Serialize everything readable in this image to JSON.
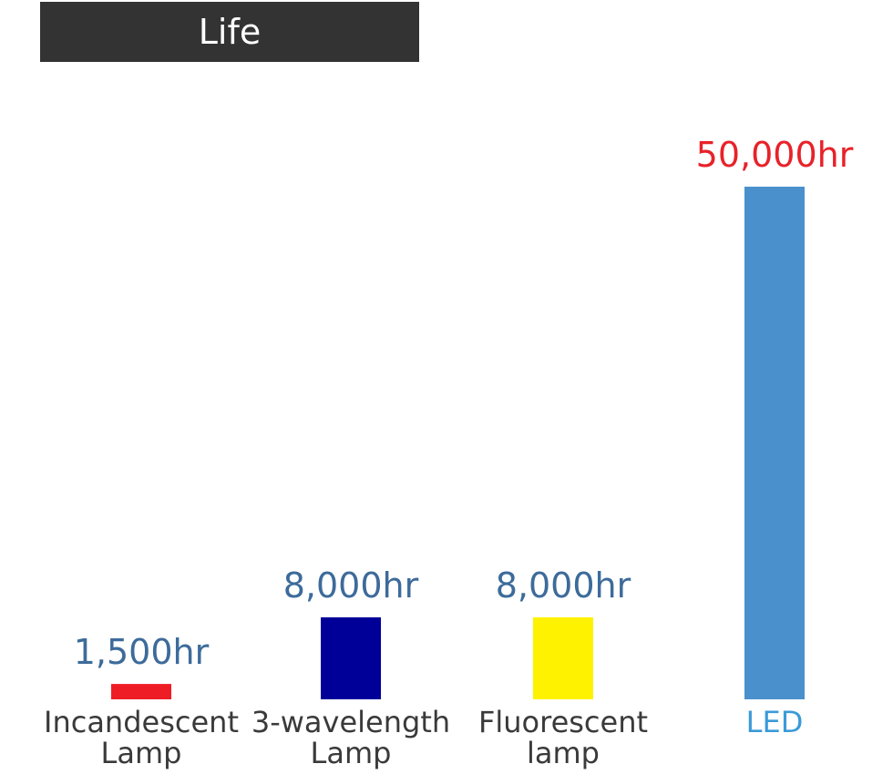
{
  "chart_data": {
    "type": "bar",
    "title": "Life",
    "categories": [
      [
        "Incandescent",
        "Lamp"
      ],
      [
        "3-wavelength",
        "Lamp"
      ],
      [
        "Fluorescent",
        "lamp"
      ],
      [
        "LED"
      ]
    ],
    "values": [
      1500,
      8000,
      8000,
      50000
    ],
    "value_labels": [
      "1,500hr",
      "8,000hr",
      "8,000hr",
      "50,000hr"
    ],
    "bar_colors": [
      "#ee1c25",
      "#000099",
      "#fff200",
      "#4a90cc"
    ],
    "value_label_colors": [
      "#3d6b9a",
      "#3d6b9a",
      "#3d6b9a",
      "#e82229"
    ],
    "category_label_colors": [
      "#3a3a3a",
      "#3a3a3a",
      "#3a3a3a",
      "#3a9ad8"
    ],
    "ylim": [
      0,
      50000
    ],
    "grid": false,
    "legend": "none"
  }
}
